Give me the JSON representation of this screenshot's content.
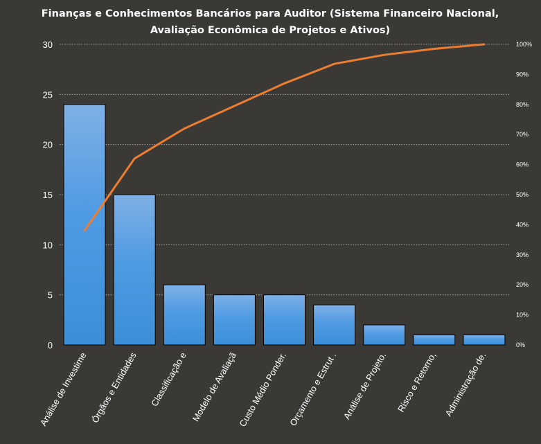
{
  "chart_data": {
    "type": "bar",
    "title_lines": [
      "Finanças e Conhecimentos Bancários para Auditor (Sistema Financeiro Nacional,",
      "Avaliação Econômica de Projetos e Ativos)"
    ],
    "categories": [
      "Análise de Investime",
      "Órgãos e Entidades",
      "Classificação e",
      "Modelo de Avaliaçã",
      "Custo Médio Ponder.",
      "Orçamento e Estrut .",
      "Análise de Projeto.",
      "Risco e Retorno,",
      "Administração de."
    ],
    "values": [
      24,
      15,
      6,
      5,
      5,
      4,
      2,
      1,
      1
    ],
    "cumulative_percent": [
      38,
      62,
      72,
      79.5,
      87,
      93.5,
      96.5,
      98.5,
      100
    ],
    "ylim": [
      0,
      30
    ],
    "yticks": [
      "0",
      "5",
      "10",
      "15",
      "20",
      "25",
      "30"
    ],
    "y2lim": [
      0,
      100
    ],
    "y2ticks": [
      "0%",
      "10%",
      "20%",
      "30%",
      "40%",
      "50%",
      "60%",
      "70%",
      "80%",
      "90%",
      "100%"
    ],
    "grid": true,
    "colors": {
      "background": "#3b3936",
      "bar_top": "#7fb0e6",
      "bar_bottom": "#3c8ed8",
      "line": "#ed7d31",
      "grid": "#bdbdbd"
    }
  }
}
